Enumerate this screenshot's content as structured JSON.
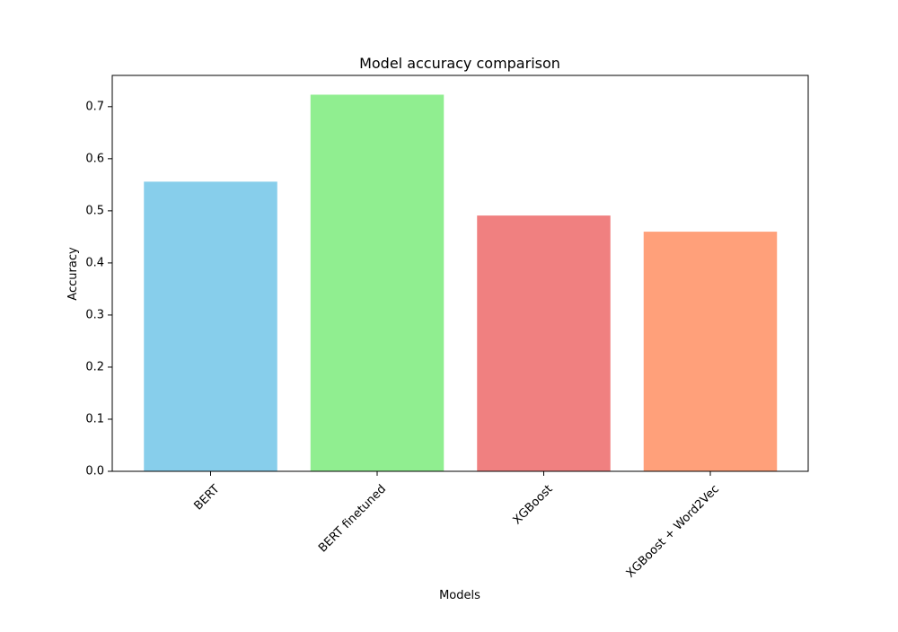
{
  "chart_data": {
    "type": "bar",
    "title": "Model accuracy comparison",
    "xlabel": "Models",
    "ylabel": "Accuracy",
    "categories": [
      "BERT",
      "BERT finetuned",
      "XGBoost",
      "XGBoost + Word2Vec"
    ],
    "values": [
      0.556,
      0.723,
      0.491,
      0.46
    ],
    "colors": [
      "#87CEEB",
      "#90EE90",
      "#F08080",
      "#FFA07A"
    ],
    "ylim": [
      0,
      0.76
    ],
    "yticks": [
      0.0,
      0.1,
      0.2,
      0.3,
      0.4,
      0.5,
      0.6,
      0.7
    ],
    "ytick_labels": [
      "0.0",
      "0.1",
      "0.2",
      "0.3",
      "0.4",
      "0.5",
      "0.6",
      "0.7"
    ],
    "grid": false,
    "legend": "none"
  }
}
